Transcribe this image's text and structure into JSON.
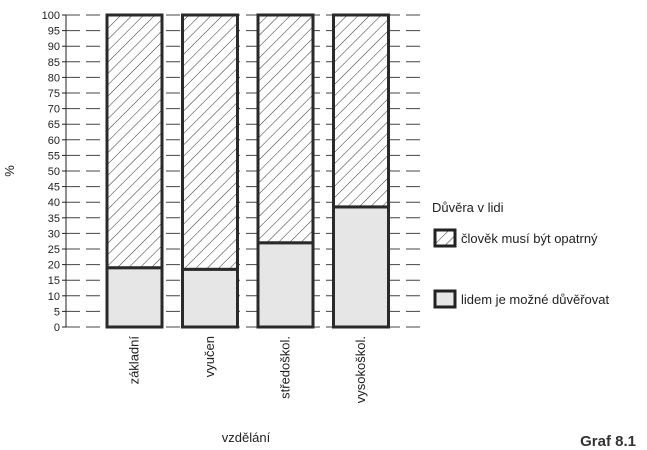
{
  "chart_data": {
    "type": "bar",
    "stacked": true,
    "categories": [
      "základní",
      "vyučen",
      "středoškol.",
      "vysokoškol."
    ],
    "series": [
      {
        "name": "lidem je možné důvěřovat",
        "values": [
          19,
          18.5,
          27,
          38.5
        ],
        "pattern": "solid",
        "color": "#e6e6e6"
      },
      {
        "name": "člověk musí být opatrný",
        "values": [
          81,
          81.5,
          73,
          61.5
        ],
        "pattern": "hatch",
        "color": "#ffffff"
      }
    ],
    "ylim": [
      0,
      100
    ],
    "yticks": [
      0,
      5,
      10,
      15,
      20,
      25,
      30,
      35,
      40,
      45,
      50,
      55,
      60,
      65,
      70,
      75,
      80,
      85,
      90,
      95,
      100
    ],
    "ylabel": "%",
    "xlabel": "vzdělání",
    "legend_title": "Důvěra v lidi",
    "legend_position": "right",
    "grid": "horizontal dashed between bars",
    "caption": "Graf 8.1"
  }
}
